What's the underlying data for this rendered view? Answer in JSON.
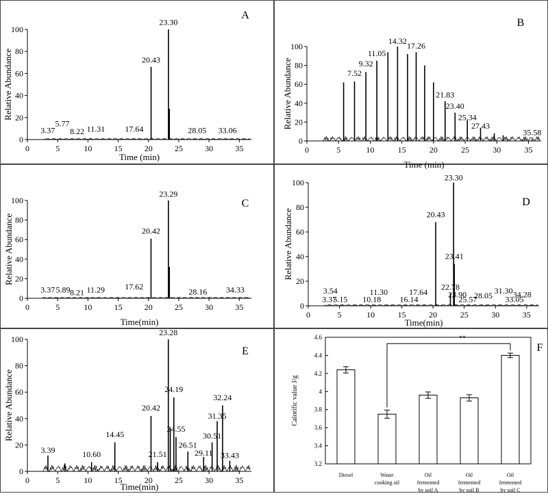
{
  "chart_data": [
    {
      "panel": "A",
      "type": "line",
      "xlabel": "Time (min)",
      "ylabel": "Relative Abundance",
      "xlim": [
        0,
        37
      ],
      "ylim": [
        0,
        100
      ],
      "xticks": [
        0,
        5,
        10,
        15,
        20,
        25,
        30,
        35
      ],
      "yticks": [
        0,
        20,
        40,
        60,
        80,
        100
      ],
      "peaks": [
        {
          "x": 20.43,
          "y": 66,
          "label": "20.43"
        },
        {
          "x": 23.3,
          "y": 100,
          "label": "23.30"
        },
        {
          "x": 23.45,
          "y": 28,
          "label": ""
        }
      ],
      "labels": [
        {
          "text": "3.37",
          "x": 3.37,
          "y": 6
        },
        {
          "text": "5.77",
          "x": 5.77,
          "y": 12
        },
        {
          "text": "8.22",
          "x": 8.22,
          "y": 5
        },
        {
          "text": "11.31",
          "x": 11.31,
          "y": 7
        },
        {
          "text": "17.64",
          "x": 17.64,
          "y": 7
        },
        {
          "text": "20.43",
          "x": 20.43,
          "y": 70
        },
        {
          "text": "23.30",
          "x": 23.3,
          "y": 104
        },
        {
          "text": "28.05",
          "x": 28.05,
          "y": 6
        },
        {
          "text": "33.06",
          "x": 33.06,
          "y": 6
        }
      ]
    },
    {
      "panel": "B",
      "type": "line",
      "xlabel": "Time (min)",
      "ylabel": "Relative Abundance",
      "xlim": [
        0,
        37
      ],
      "ylim": [
        0,
        100
      ],
      "xticks": [
        0,
        5,
        10,
        15,
        20,
        25,
        30,
        35
      ],
      "yticks": [
        0,
        20,
        40,
        60,
        80,
        100
      ],
      "peaks": [
        {
          "x": 5.8,
          "y": 62
        },
        {
          "x": 7.52,
          "y": 63
        },
        {
          "x": 9.32,
          "y": 73
        },
        {
          "x": 11.05,
          "y": 85
        },
        {
          "x": 12.8,
          "y": 94
        },
        {
          "x": 14.32,
          "y": 100
        },
        {
          "x": 15.9,
          "y": 92
        },
        {
          "x": 17.26,
          "y": 94
        },
        {
          "x": 18.6,
          "y": 80
        },
        {
          "x": 20.0,
          "y": 62
        },
        {
          "x": 21.83,
          "y": 42
        },
        {
          "x": 23.4,
          "y": 30
        },
        {
          "x": 25.34,
          "y": 22
        },
        {
          "x": 27.43,
          "y": 14
        },
        {
          "x": 29.6,
          "y": 8
        },
        {
          "x": 31.0,
          "y": 6
        },
        {
          "x": 35.58,
          "y": 2
        }
      ],
      "labels": [
        {
          "text": "7.52",
          "x": 7.52,
          "y": 69
        },
        {
          "text": "9.32",
          "x": 9.32,
          "y": 79
        },
        {
          "text": "11.05",
          "x": 11.05,
          "y": 90
        },
        {
          "text": "14.32",
          "x": 14.32,
          "y": 103
        },
        {
          "text": "17.26",
          "x": 17.26,
          "y": 98
        },
        {
          "text": "21.83",
          "x": 21.83,
          "y": 46
        },
        {
          "text": "23.40",
          "x": 23.4,
          "y": 34
        },
        {
          "text": "25.34",
          "x": 25.34,
          "y": 22
        },
        {
          "text": "27.43",
          "x": 27.43,
          "y": 13
        },
        {
          "text": "35.58",
          "x": 35.58,
          "y": 6
        }
      ]
    },
    {
      "panel": "C",
      "type": "line",
      "xlabel": "Time(min)",
      "ylabel": "Relative  Abundance",
      "xlim": [
        0,
        37
      ],
      "ylim": [
        0,
        100
      ],
      "xticks": [
        0,
        5,
        10,
        15,
        20,
        25,
        30,
        35
      ],
      "yticks": [
        0,
        20,
        40,
        60,
        80,
        100
      ],
      "peaks": [
        {
          "x": 20.42,
          "y": 61,
          "label": "20.42"
        },
        {
          "x": 23.29,
          "y": 100,
          "label": "23.29"
        },
        {
          "x": 23.45,
          "y": 32,
          "label": ""
        }
      ],
      "labels": [
        {
          "text": "3.37",
          "x": 3.37,
          "y": 6
        },
        {
          "text": "5.89",
          "x": 5.89,
          "y": 6
        },
        {
          "text": "8.21",
          "x": 8.21,
          "y": 3
        },
        {
          "text": "11.29",
          "x": 11.29,
          "y": 6
        },
        {
          "text": "17.62",
          "x": 17.62,
          "y": 9
        },
        {
          "text": "20.42",
          "x": 20.42,
          "y": 66
        },
        {
          "text": "23.29",
          "x": 23.29,
          "y": 104
        },
        {
          "text": "28.16",
          "x": 28.16,
          "y": 4
        },
        {
          "text": "34.33",
          "x": 34.33,
          "y": 6
        }
      ]
    },
    {
      "panel": "D",
      "type": "line",
      "xlabel": "Time(min)",
      "ylabel": "Relative Abundance",
      "xlim": [
        0,
        37
      ],
      "ylim": [
        0,
        100
      ],
      "xticks": [
        0,
        5,
        10,
        15,
        20,
        25,
        30,
        35
      ],
      "yticks": [
        0,
        20,
        40,
        60,
        80,
        100
      ],
      "peaks": [
        {
          "x": 20.43,
          "y": 68
        },
        {
          "x": 23.3,
          "y": 100
        },
        {
          "x": 23.41,
          "y": 34
        },
        {
          "x": 22.78,
          "y": 10
        }
      ],
      "labels": [
        {
          "text": "3.54",
          "x": 3.54,
          "y": 10
        },
        {
          "text": "3.37",
          "x": 3.37,
          "y": 3
        },
        {
          "text": "5.15",
          "x": 5.15,
          "y": 3
        },
        {
          "text": "10.18",
          "x": 10.18,
          "y": 3
        },
        {
          "text": "11.30",
          "x": 11.3,
          "y": 9
        },
        {
          "text": "16.14",
          "x": 16.14,
          "y": 3
        },
        {
          "text": "17.64",
          "x": 17.64,
          "y": 9
        },
        {
          "text": "20.43",
          "x": 20.43,
          "y": 72
        },
        {
          "text": "22.78",
          "x": 22.78,
          "y": 13
        },
        {
          "text": "23.30",
          "x": 23.3,
          "y": 102
        },
        {
          "text": "23.41",
          "x": 23.41,
          "y": 38
        },
        {
          "text": "23.90",
          "x": 23.9,
          "y": 7
        },
        {
          "text": "25.57",
          "x": 25.57,
          "y": 3
        },
        {
          "text": "28.05",
          "x": 28.05,
          "y": 6
        },
        {
          "text": "31.30",
          "x": 31.3,
          "y": 10
        },
        {
          "text": "33.05",
          "x": 33.05,
          "y": 3
        },
        {
          "text": "34.28",
          "x": 34.28,
          "y": 7
        }
      ]
    },
    {
      "panel": "E",
      "type": "line",
      "xlabel": "Time(min)",
      "ylabel": "Relative Abundance",
      "xlim": [
        0,
        37
      ],
      "ylim": [
        0,
        100
      ],
      "xticks": [
        0,
        5,
        10,
        15,
        20,
        25,
        30,
        35
      ],
      "yticks": [
        0,
        20,
        40,
        60,
        80,
        100
      ],
      "peaks": [
        {
          "x": 3.39,
          "y": 12
        },
        {
          "x": 6.2,
          "y": 6
        },
        {
          "x": 10.6,
          "y": 7
        },
        {
          "x": 14.45,
          "y": 22
        },
        {
          "x": 20.42,
          "y": 42
        },
        {
          "x": 21.51,
          "y": 7
        },
        {
          "x": 23.28,
          "y": 100
        },
        {
          "x": 23.6,
          "y": 33
        },
        {
          "x": 24.19,
          "y": 56
        },
        {
          "x": 24.55,
          "y": 26
        },
        {
          "x": 26.51,
          "y": 15
        },
        {
          "x": 29.11,
          "y": 11
        },
        {
          "x": 30.51,
          "y": 22
        },
        {
          "x": 31.35,
          "y": 38
        },
        {
          "x": 32.24,
          "y": 50
        },
        {
          "x": 33.43,
          "y": 8
        }
      ],
      "labels": [
        {
          "text": "3.39",
          "x": 3.39,
          "y": 14
        },
        {
          "text": "10.60",
          "x": 10.6,
          "y": 11
        },
        {
          "text": "14.45",
          "x": 14.45,
          "y": 26
        },
        {
          "text": "20.42",
          "x": 20.42,
          "y": 46
        },
        {
          "text": "21.51",
          "x": 21.51,
          "y": 11
        },
        {
          "text": "23.28",
          "x": 23.28,
          "y": 103
        },
        {
          "text": "24.19",
          "x": 24.19,
          "y": 60
        },
        {
          "text": "24.55",
          "x": 24.55,
          "y": 30
        },
        {
          "text": "26.51",
          "x": 26.51,
          "y": 18
        },
        {
          "text": "29.11",
          "x": 29.11,
          "y": 12
        },
        {
          "text": "30.51",
          "x": 30.51,
          "y": 25
        },
        {
          "text": "31.35",
          "x": 31.35,
          "y": 40
        },
        {
          "text": "32.24",
          "x": 32.24,
          "y": 54
        },
        {
          "text": "33.43",
          "x": 33.43,
          "y": 10
        }
      ]
    },
    {
      "panel": "F",
      "type": "bar",
      "ylabel": "Calorific value J/g",
      "ylim": [
        3.2,
        4.6
      ],
      "yticks": [
        3.2,
        3.4,
        3.6,
        3.8,
        4.0,
        4.2,
        4.4,
        4.6
      ],
      "ytick_labels": [
        "3.2",
        "3.4",
        "3.6",
        "3.8",
        "4",
        "4.2",
        "4.4",
        "4.6"
      ],
      "categories": [
        [
          "Diesel"
        ],
        [
          "Waste",
          "cooking oil"
        ],
        [
          "Oil",
          "fermented",
          "by soil A"
        ],
        [
          "Oil",
          "fermented",
          "by soil B"
        ],
        [
          "Oil",
          "fermented",
          "by soil C"
        ]
      ],
      "values": [
        4.24,
        3.75,
        3.96,
        3.93,
        4.4
      ],
      "errors": [
        0.035,
        0.045,
        0.035,
        0.035,
        0.025
      ],
      "significance": {
        "from": 1,
        "to": 4,
        "label": "**",
        "y": 4.53
      }
    }
  ]
}
